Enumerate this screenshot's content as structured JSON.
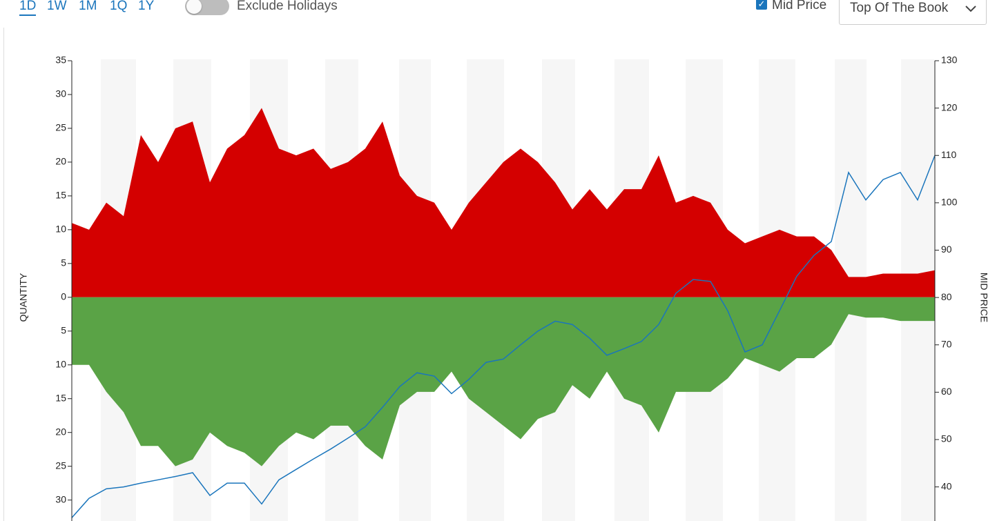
{
  "toolbar": {
    "ranges": [
      "1D",
      "1W",
      "1M",
      "1Q",
      "1Y"
    ],
    "exclude_holidays": "Exclude Holidays",
    "mid_price": "Mid Price",
    "book_mode": "Top Of The Book"
  },
  "chart_data": {
    "type": "area",
    "y_label": "QUANTITY",
    "y2_label": "MID PRICE",
    "ylim": [
      -33.1,
      35
    ],
    "yticks": [
      {
        "value": -30,
        "label": "30"
      },
      {
        "value": -25,
        "label": "25"
      },
      {
        "value": -20,
        "label": "20"
      },
      {
        "value": -15,
        "label": "15"
      },
      {
        "value": -10,
        "label": "10"
      },
      {
        "value": -5,
        "label": "5"
      },
      0,
      5,
      10,
      15,
      20,
      25,
      30,
      35
    ],
    "y2lim": [
      32.8,
      130
    ],
    "y2ticks": [
      40,
      50,
      60,
      70,
      80,
      90,
      100,
      110,
      120,
      130
    ],
    "series": [
      {
        "color": "#d40000",
        "values": [
          11,
          10,
          14,
          12,
          24,
          20,
          25,
          26,
          17,
          22,
          24,
          28,
          22,
          21,
          22,
          19,
          20,
          22,
          26,
          18,
          15,
          14,
          10,
          14,
          17,
          20,
          22,
          20,
          17,
          13,
          16,
          13,
          16,
          16,
          21,
          14,
          15,
          14,
          10,
          8,
          9,
          10,
          9,
          9,
          7,
          3,
          3,
          3.5,
          3.5,
          3.5,
          4
        ]
      },
      {
        "color": "#5aa346",
        "values": [
          -10,
          -10,
          -14,
          -17,
          -22,
          -22,
          -25,
          -24,
          -20,
          -22,
          -23,
          -25,
          -22,
          -20,
          -21,
          -19,
          -19,
          -22,
          -24,
          -16,
          -14,
          -14,
          -11,
          -15,
          -17,
          -19,
          -21,
          -18,
          -17,
          -13,
          -15,
          -11,
          -15,
          -16,
          -20,
          -14,
          -14,
          -14,
          -12,
          -9,
          -10,
          -11,
          -9,
          -9,
          -7,
          -2.5,
          -3,
          -3,
          -3.5,
          -3.5,
          -3.5
        ]
      },
      {
        "type": "line",
        "axis": "y2",
        "color": "#1a75bc",
        "values": [
          33.5,
          37.6,
          39.6,
          40,
          40.8,
          41.5,
          42.2,
          43,
          38.2,
          40.8,
          40.8,
          36.4,
          41.5,
          43.7,
          45.9,
          48,
          50.3,
          52.7,
          56.8,
          61.2,
          64.1,
          63.4,
          59.7,
          62.7,
          66.3,
          67,
          70,
          72.9,
          75,
          74.3,
          71.4,
          67.8,
          69.2,
          70.7,
          74.3,
          80.9,
          83.8,
          83.4,
          77.2,
          68.5,
          70,
          77.2,
          84.5,
          88.9,
          91.8,
          106.4,
          100.6,
          104.9,
          106.4,
          100.6,
          110
        ]
      }
    ]
  }
}
